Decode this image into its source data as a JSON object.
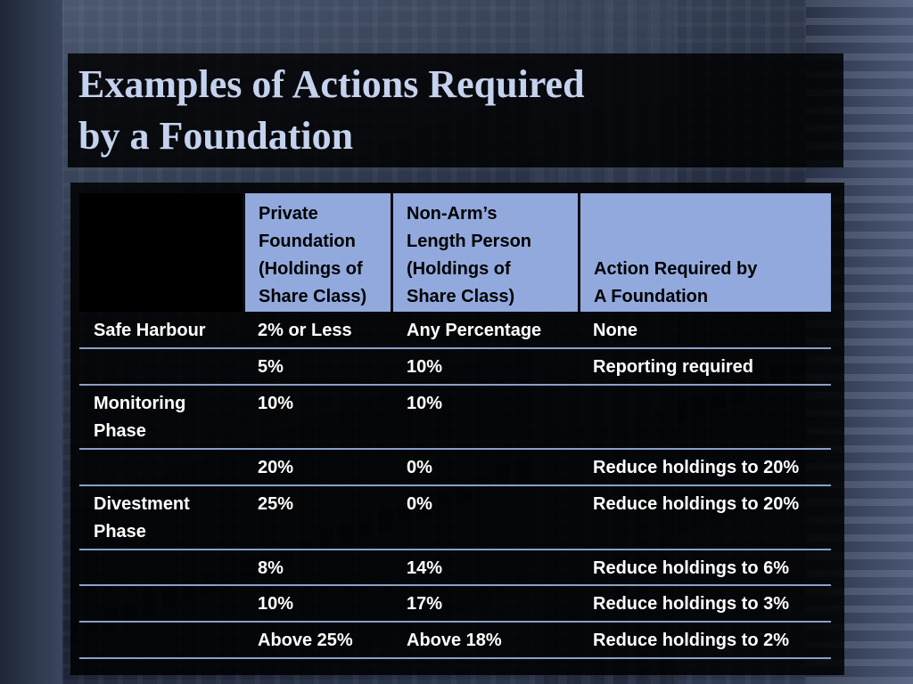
{
  "slide": {
    "title_line1": "Examples of Actions Required",
    "title_line2": "by a Foundation"
  },
  "table": {
    "headers": [
      "",
      "Private\nFoundation\n(Holdings of\nShare Class)",
      "Non-Arm’s\nLength Person\n(Holdings of\nShare Class)",
      "Action Required by\nA Foundation"
    ],
    "rows": [
      [
        "Safe Harbour",
        "2% or Less",
        "Any Percentage",
        "None"
      ],
      [
        "",
        "5%",
        "10%",
        "Reporting required"
      ],
      [
        "Monitoring Phase",
        "10%",
        "10%",
        ""
      ],
      [
        "",
        "20%",
        "0%",
        "Reduce holdings to 20%"
      ],
      [
        "Divestment Phase",
        "25%",
        "0%",
        "Reduce holdings to 20%"
      ],
      [
        "",
        "8%",
        "14%",
        "Reduce holdings to 6%"
      ],
      [
        "",
        "10%",
        "17%",
        "Reduce holdings to 3%"
      ],
      [
        "",
        "Above 25%",
        "Above 18%",
        "Reduce holdings to 2%"
      ]
    ]
  },
  "colors": {
    "title_text": "#c4d2ee",
    "header_bg": "#92a9dd",
    "row_rule": "#8aa0c8"
  }
}
